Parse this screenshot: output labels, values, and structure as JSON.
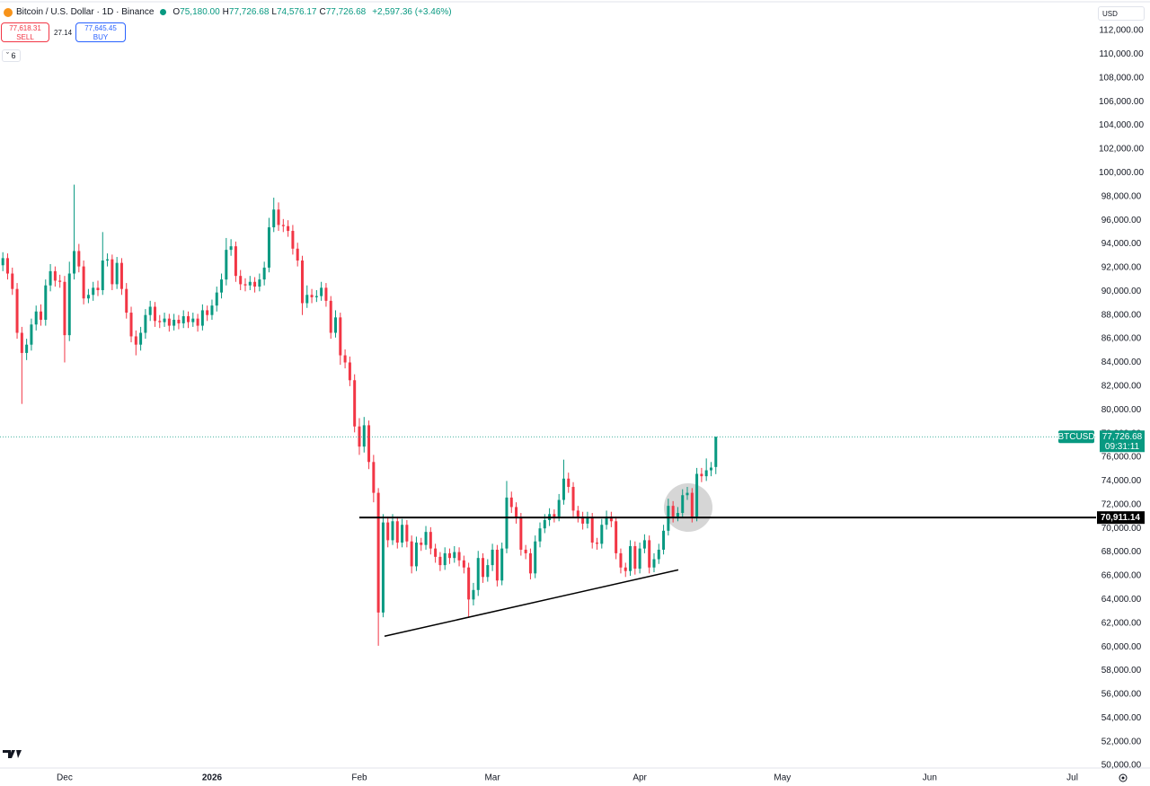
{
  "chart_data": {
    "type": "candlestick",
    "title": "Bitcoin / U.S. Dollar · 1D · Binance",
    "legend_ohlc": [
      {
        "key": "O",
        "value": "75,180.00"
      },
      {
        "key": "H",
        "value": "77,726.68"
      },
      {
        "key": "L",
        "value": "74,576.17"
      },
      {
        "key": "C",
        "value": "77,726.68"
      }
    ],
    "change": "+2,597.36 (+3.46%)",
    "sell_price": "77,618.31",
    "sell_label": "SELL",
    "spread": "27.14",
    "buy_price": "77,645.45",
    "buy_label": "BUY",
    "indicators_count": "6",
    "currency": "USD",
    "symbol": "BTCUSD",
    "last_price_label": "77,726.68",
    "countdown": "09:31:11",
    "up_color": "#089981",
    "down_color": "#f23645",
    "open": [
      92200,
      92800,
      91500,
      90200,
      86500,
      84800,
      85500,
      87200,
      88300,
      87600,
      90500,
      91700,
      90900,
      90800,
      86300,
      91500,
      93400,
      92100,
      89400,
      89700,
      90300,
      90100,
      92600,
      92700,
      90600,
      92400,
      90200,
      88200,
      86200,
      85500,
      86500,
      88000,
      88700,
      87500,
      87400,
      87700,
      87100,
      87600,
      87300,
      87900,
      87400,
      87700,
      87100,
      88400,
      88000,
      88800,
      89900,
      91000,
      93500,
      93800,
      91300,
      90600,
      90500,
      90800,
      90400,
      91000,
      92000,
      95400,
      96900,
      95600,
      95500,
      95100,
      93600,
      92600,
      89000,
      89700,
      89500,
      89600,
      90300,
      89200,
      86500,
      87800,
      84600,
      84000,
      82500,
      78600,
      76900,
      78700,
      75600,
      73000,
      62900,
      70500,
      69000,
      70600,
      68800,
      70300,
      68900,
      66800,
      68800,
      68600,
      69700,
      68300,
      67600,
      66900,
      67900,
      67500,
      68000,
      67300,
      66700,
      64000,
      64800,
      67500,
      65900,
      66900,
      68200,
      65600,
      68300,
      72600,
      71800,
      70900,
      68200,
      67900,
      66200,
      68900,
      70000,
      70700,
      71200,
      71000,
      72400,
      74200,
      73500,
      71500,
      71000,
      70400,
      70900,
      68800,
      68700,
      70300,
      71000,
      70600,
      67900,
      66700,
      66400,
      68500,
      66600,
      68300,
      69000,
      66700,
      67400,
      68200,
      69800,
      71900,
      71000,
      71300,
      72800,
      73000,
      71000,
      74600,
      74400,
      74900,
      75180
    ],
    "high": [
      93300,
      93200,
      92000,
      90700,
      87000,
      86000,
      87700,
      88800,
      88900,
      91000,
      92300,
      92100,
      91400,
      91300,
      92500,
      99000,
      94000,
      92600,
      90200,
      90800,
      90900,
      95000,
      93200,
      93100,
      92900,
      92800,
      90700,
      88700,
      86700,
      87000,
      88500,
      89200,
      89100,
      88000,
      88200,
      88100,
      88100,
      88000,
      88400,
      88300,
      88200,
      88100,
      88900,
      88800,
      89300,
      90400,
      91500,
      94500,
      94400,
      94200,
      91800,
      91100,
      91300,
      91200,
      91500,
      92500,
      96200,
      97900,
      97500,
      96100,
      96000,
      95600,
      94100,
      93000,
      90500,
      90200,
      90100,
      90800,
      90700,
      89600,
      88400,
      88200,
      85100,
      84500,
      83000,
      79300,
      79400,
      79100,
      76200,
      73400,
      71200,
      71000,
      71200,
      71000,
      70800,
      70700,
      69400,
      69300,
      69200,
      70200,
      70100,
      68700,
      68000,
      68400,
      68300,
      68500,
      68400,
      67700,
      67100,
      65400,
      68100,
      67900,
      67400,
      68700,
      68600,
      68800,
      74000,
      73100,
      72200,
      71300,
      68600,
      68300,
      69400,
      70500,
      71200,
      71700,
      71600,
      72900,
      75800,
      74700,
      73900,
      71900,
      71400,
      71400,
      71300,
      69200,
      70800,
      71500,
      71400,
      71000,
      68300,
      67100,
      69000,
      68900,
      68800,
      69500,
      69400,
      67900,
      68700,
      70300,
      72500,
      72300,
      71800,
      73300,
      73500,
      73400,
      75100,
      75100,
      75900,
      75600,
      77726.68
    ],
    "low": [
      91700,
      91000,
      89700,
      86000,
      80500,
      84200,
      85000,
      86700,
      87100,
      87100,
      90000,
      90400,
      90300,
      84000,
      85800,
      91000,
      91600,
      88900,
      89000,
      89200,
      89600,
      89700,
      92100,
      90100,
      90200,
      89700,
      87700,
      85700,
      84600,
      85000,
      86000,
      87500,
      87000,
      86900,
      87000,
      86600,
      86700,
      86800,
      86900,
      86900,
      87000,
      86600,
      86700,
      87500,
      87600,
      88300,
      89400,
      90500,
      93000,
      90800,
      90100,
      90000,
      90100,
      89900,
      90000,
      90500,
      91600,
      95000,
      95100,
      95000,
      94600,
      93100,
      92100,
      88000,
      88600,
      89000,
      89100,
      89200,
      88700,
      86000,
      86100,
      83800,
      83500,
      82000,
      78100,
      76200,
      76400,
      75000,
      72200,
      60100,
      62500,
      68400,
      68600,
      68300,
      68400,
      68400,
      66200,
      66400,
      68100,
      68200,
      67800,
      67100,
      66400,
      66500,
      67000,
      67100,
      66800,
      66200,
      62500,
      63500,
      64300,
      65400,
      65500,
      66400,
      65100,
      65200,
      67900,
      71300,
      70400,
      67700,
      67400,
      65700,
      65800,
      68400,
      69600,
      70200,
      70500,
      70600,
      72000,
      73000,
      71000,
      70500,
      69900,
      70000,
      68300,
      68200,
      68300,
      69900,
      70100,
      67400,
      66200,
      65900,
      66000,
      66100,
      66200,
      67900,
      66200,
      66300,
      67000,
      67800,
      69400,
      70500,
      70600,
      70900,
      72400,
      70500,
      70600,
      73900,
      74000,
      74400,
      74576.17
    ],
    "close": [
      92800,
      91500,
      90200,
      86500,
      84800,
      85500,
      87200,
      88300,
      87600,
      90500,
      91700,
      90900,
      90800,
      86300,
      91500,
      93400,
      92100,
      89400,
      89700,
      90300,
      90100,
      92600,
      92700,
      90600,
      92400,
      90200,
      88200,
      86200,
      85500,
      86500,
      88000,
      88700,
      87500,
      87400,
      87700,
      87100,
      87600,
      87300,
      87900,
      87400,
      87700,
      87100,
      88400,
      88000,
      88800,
      89900,
      91000,
      93500,
      93800,
      91300,
      90600,
      90500,
      90800,
      90400,
      91000,
      92000,
      95400,
      96900,
      95600,
      95500,
      95100,
      93600,
      92600,
      89000,
      89700,
      89500,
      89600,
      90300,
      89200,
      86500,
      87800,
      84600,
      84000,
      82500,
      78600,
      76900,
      78700,
      75600,
      73000,
      62900,
      70500,
      69000,
      70600,
      68800,
      70300,
      68900,
      66800,
      68800,
      68600,
      69700,
      68300,
      67600,
      66900,
      67900,
      67500,
      68000,
      67300,
      66700,
      64000,
      64800,
      67500,
      65900,
      66900,
      68200,
      65600,
      68300,
      72600,
      71800,
      70900,
      68200,
      67900,
      66200,
      68900,
      70000,
      70700,
      71200,
      71000,
      72400,
      74200,
      73500,
      71500,
      71000,
      70400,
      70900,
      68800,
      68700,
      70300,
      71000,
      70600,
      67900,
      66700,
      66400,
      68500,
      66600,
      68300,
      69000,
      66700,
      67400,
      68200,
      69800,
      71900,
      71000,
      71300,
      72800,
      73000,
      71000,
      74600,
      74400,
      74900,
      75129.32,
      77726.68
    ],
    "xlim": [
      -0.6,
      230
    ],
    "xticks": [
      {
        "value": 13,
        "label": "Dec"
      },
      {
        "value": 44,
        "label": "2026"
      },
      {
        "value": 75,
        "label": "Feb"
      },
      {
        "value": 103,
        "label": "Mar"
      },
      {
        "value": 134,
        "label": "Apr"
      },
      {
        "value": 164,
        "label": "May"
      },
      {
        "value": 195,
        "label": "Jun"
      },
      {
        "value": 225,
        "label": "Jul"
      }
    ],
    "ylim": [
      49400,
      114580
    ],
    "yticks": [
      {
        "value": 50000,
        "label": "50,000.00"
      },
      {
        "value": 52000,
        "label": "52,000.00"
      },
      {
        "value": 54000,
        "label": "54,000.00"
      },
      {
        "value": 56000,
        "label": "56,000.00"
      },
      {
        "value": 58000,
        "label": "58,000.00"
      },
      {
        "value": 60000,
        "label": "60,000.00"
      },
      {
        "value": 62000,
        "label": "62,000.00"
      },
      {
        "value": 64000,
        "label": "64,000.00"
      },
      {
        "value": 66000,
        "label": "66,000.00"
      },
      {
        "value": 68000,
        "label": "68,000.00"
      },
      {
        "value": 70000,
        "label": "70,000.00"
      },
      {
        "value": 72000,
        "label": "72,000.00"
      },
      {
        "value": 74000,
        "label": "74,000.00"
      },
      {
        "value": 76000,
        "label": "76,000.00"
      },
      {
        "value": 78000,
        "label": "78,000.00"
      },
      {
        "value": 80000,
        "label": "80,000.00"
      },
      {
        "value": 82000,
        "label": "82,000.00"
      },
      {
        "value": 84000,
        "label": "84,000.00"
      },
      {
        "value": 86000,
        "label": "86,000.00"
      },
      {
        "value": 88000,
        "label": "88,000.00"
      },
      {
        "value": 90000,
        "label": "90,000.00"
      },
      {
        "value": 92000,
        "label": "92,000.00"
      },
      {
        "value": 94000,
        "label": "94,000.00"
      },
      {
        "value": 96000,
        "label": "96,000.00"
      },
      {
        "value": 98000,
        "label": "98,000.00"
      },
      {
        "value": 100000,
        "label": "100,000.00"
      },
      {
        "value": 102000,
        "label": "102,000.00"
      },
      {
        "value": 104000,
        "label": "104,000.00"
      },
      {
        "value": 106000,
        "label": "106,000.00"
      },
      {
        "value": 108000,
        "label": "108,000.00"
      },
      {
        "value": 110000,
        "label": "110,000.00"
      },
      {
        "value": 112000,
        "label": "112,000.00"
      }
    ],
    "grid": false,
    "hline": {
      "value": 70911.14,
      "label": "70,911.14"
    },
    "trendline": [
      [
        80.3,
        60900
      ],
      [
        142.1,
        66500
      ]
    ]
  }
}
